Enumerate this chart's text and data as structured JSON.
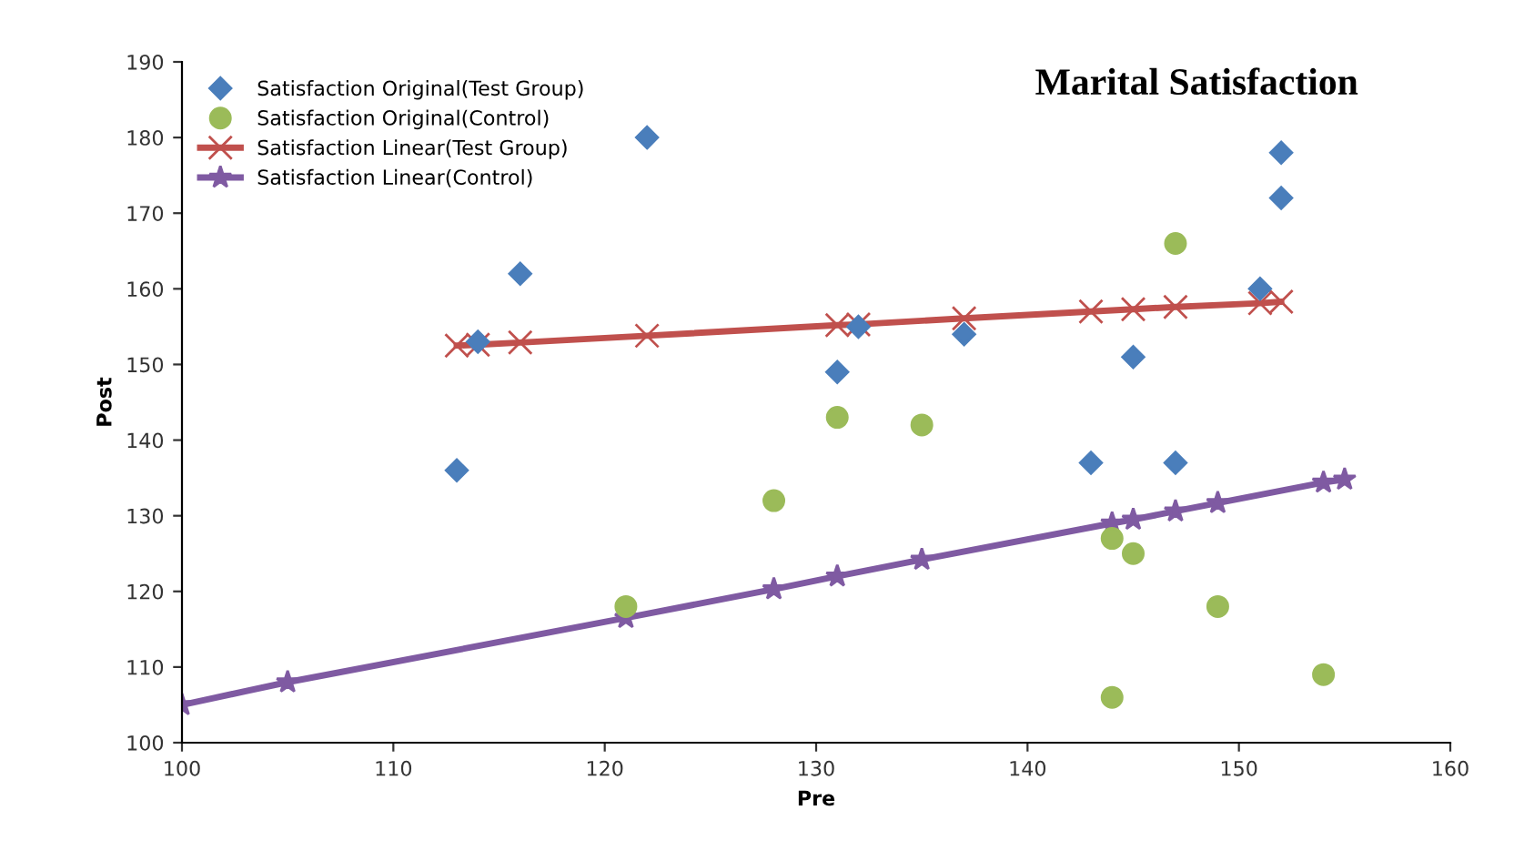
{
  "chart_data": {
    "type": "scatter",
    "title": "Marital Satisfaction",
    "xlabel": "Pre",
    "ylabel": "Post",
    "xlim": [
      100,
      160
    ],
    "xticks": [
      100,
      110,
      120,
      130,
      140,
      150,
      160
    ],
    "ylim": [
      100,
      190
    ],
    "yticks": [
      100,
      110,
      120,
      130,
      140,
      150,
      160,
      170,
      180,
      190
    ],
    "grid": false,
    "legend": "top left",
    "series": [
      {
        "name": "Satisfaction Original(Test Group)",
        "marker": "diamond",
        "color": "#4a7ebb",
        "x": [
          113,
          114,
          116,
          122,
          131,
          132,
          137,
          143,
          145,
          147,
          151,
          152,
          152
        ],
        "values": [
          136,
          153,
          162,
          180,
          149,
          155,
          154,
          137,
          151,
          137,
          160,
          178,
          172
        ]
      },
      {
        "name": "Satisfaction Original(Control)",
        "marker": "circle",
        "color": "#9bbb59",
        "x": [
          121,
          128,
          131,
          135,
          144,
          145,
          144,
          147,
          149,
          154
        ],
        "values": [
          118,
          132,
          143,
          142,
          127,
          125,
          106,
          166,
          118,
          109
        ]
      },
      {
        "name": "Satisfaction Linear(Test Group)",
        "type": "line",
        "marker": "cross",
        "color": "#c0504d",
        "x": [
          113,
          114,
          116,
          122,
          131,
          132,
          137,
          143,
          145,
          147,
          151,
          152
        ],
        "values": [
          152.5,
          152.6,
          152.9,
          153.8,
          155.2,
          155.3,
          156.1,
          157.0,
          157.3,
          157.6,
          158.1,
          158.3
        ]
      },
      {
        "name": "Satisfaction Linear(Control)",
        "type": "line",
        "marker": "star",
        "color": "#7f5aa2",
        "x": [
          100,
          105,
          121,
          128,
          131,
          135,
          144,
          145,
          147,
          149,
          154,
          155
        ],
        "values": [
          105,
          108,
          116.5,
          120.3,
          122,
          124.2,
          129,
          129.5,
          130.6,
          131.7,
          134.4,
          134.8
        ]
      }
    ]
  }
}
